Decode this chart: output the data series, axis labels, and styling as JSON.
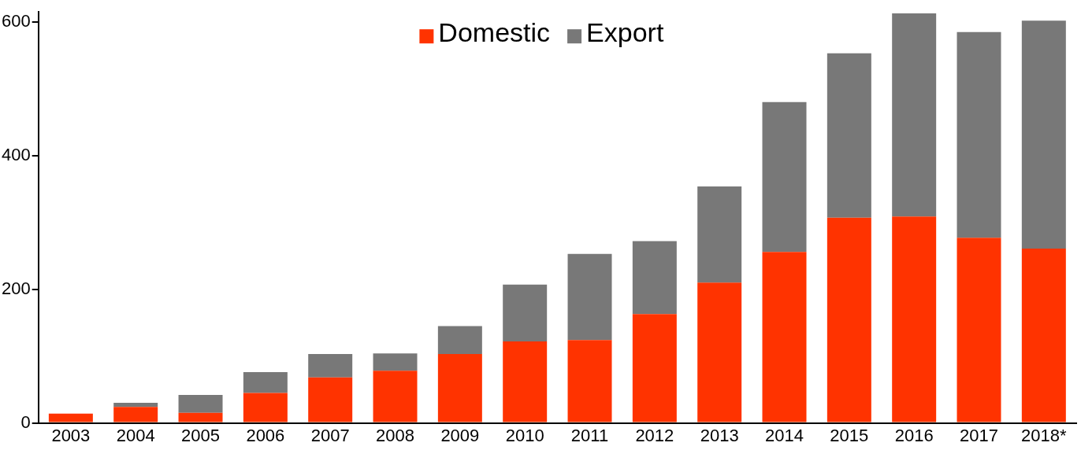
{
  "chart_data": {
    "type": "bar",
    "stacked": true,
    "categories": [
      "2003",
      "2004",
      "2005",
      "2006",
      "2007",
      "2008",
      "2009",
      "2010",
      "2011",
      "2012",
      "2013",
      "2014",
      "2015",
      "2016",
      "2017",
      "2018*"
    ],
    "series": [
      {
        "name": "Domestic",
        "color": "#ff3300",
        "values": [
          14,
          24,
          15,
          45,
          68,
          78,
          103,
          122,
          124,
          163,
          210,
          256,
          307,
          309,
          277,
          261
        ]
      },
      {
        "name": "Export",
        "color": "#787878",
        "values": [
          0,
          6,
          27,
          31,
          35,
          26,
          42,
          85,
          129,
          109,
          144,
          224,
          246,
          304,
          308,
          341
        ]
      }
    ],
    "ylim": [
      0,
      615
    ],
    "yticks": [
      0,
      200,
      400,
      600
    ],
    "grid": false,
    "legend": "top"
  }
}
